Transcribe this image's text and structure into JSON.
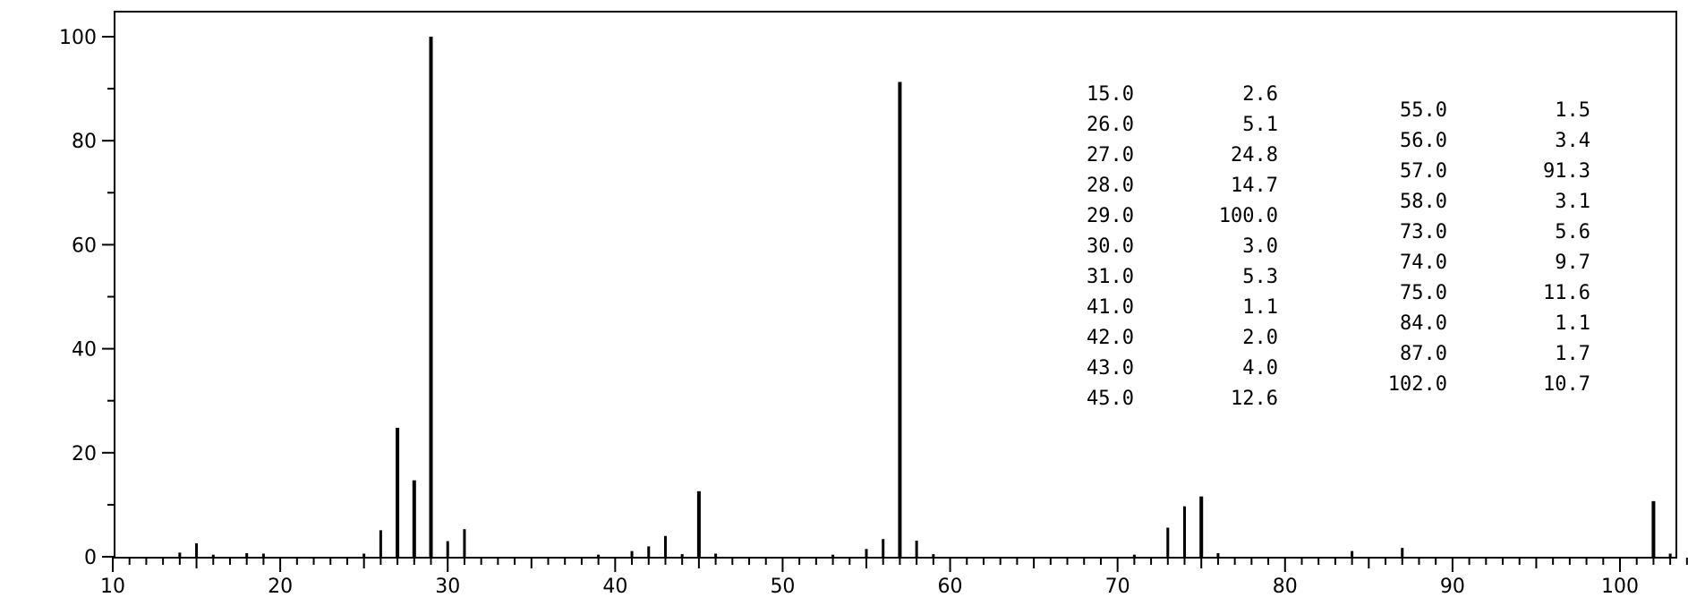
{
  "chart_data": {
    "type": "bar",
    "title": "",
    "xlabel": "",
    "ylabel": "",
    "xlim": [
      10,
      105
    ],
    "ylim": [
      0,
      100
    ],
    "grid": false,
    "xticks": [
      10,
      20,
      30,
      40,
      50,
      60,
      70,
      80,
      90,
      100
    ],
    "yticks": [
      0,
      20,
      40,
      60,
      80,
      100
    ],
    "series": [
      {
        "values": [
          {
            "x": 14,
            "y": 0.8
          },
          {
            "x": 15,
            "y": 2.6
          },
          {
            "x": 16,
            "y": 0.4
          },
          {
            "x": 18,
            "y": 0.7
          },
          {
            "x": 19,
            "y": 0.6
          },
          {
            "x": 25,
            "y": 0.6
          },
          {
            "x": 26,
            "y": 5.1
          },
          {
            "x": 27,
            "y": 24.8
          },
          {
            "x": 28,
            "y": 14.7
          },
          {
            "x": 29,
            "y": 100.0
          },
          {
            "x": 30,
            "y": 3.0
          },
          {
            "x": 31,
            "y": 5.3
          },
          {
            "x": 39,
            "y": 0.4
          },
          {
            "x": 41,
            "y": 1.1
          },
          {
            "x": 42,
            "y": 2.0
          },
          {
            "x": 43,
            "y": 4.0
          },
          {
            "x": 44,
            "y": 0.5
          },
          {
            "x": 45,
            "y": 12.6
          },
          {
            "x": 46,
            "y": 0.6
          },
          {
            "x": 53,
            "y": 0.4
          },
          {
            "x": 55,
            "y": 1.5
          },
          {
            "x": 56,
            "y": 3.4
          },
          {
            "x": 57,
            "y": 91.3
          },
          {
            "x": 58,
            "y": 3.1
          },
          {
            "x": 59,
            "y": 0.5
          },
          {
            "x": 71,
            "y": 0.4
          },
          {
            "x": 73,
            "y": 5.6
          },
          {
            "x": 74,
            "y": 9.7
          },
          {
            "x": 75,
            "y": 11.6
          },
          {
            "x": 76,
            "y": 0.7
          },
          {
            "x": 84,
            "y": 1.1
          },
          {
            "x": 87,
            "y": 1.7
          },
          {
            "x": 102,
            "y": 10.7
          },
          {
            "x": 103,
            "y": 0.6
          }
        ]
      }
    ],
    "peak_table": {
      "columns": [
        [
          [
            "15.0",
            "2.6"
          ],
          [
            "26.0",
            "5.1"
          ],
          [
            "27.0",
            "24.8"
          ],
          [
            "28.0",
            "14.7"
          ],
          [
            "29.0",
            "100.0"
          ],
          [
            "30.0",
            "3.0"
          ],
          [
            "31.0",
            "5.3"
          ],
          [
            "41.0",
            "1.1"
          ],
          [
            "42.0",
            "2.0"
          ],
          [
            "43.0",
            "4.0"
          ],
          [
            "45.0",
            "12.6"
          ]
        ],
        [
          [
            "55.0",
            "1.5"
          ],
          [
            "56.0",
            "3.4"
          ],
          [
            "57.0",
            "91.3"
          ],
          [
            "58.0",
            "3.1"
          ],
          [
            "73.0",
            "5.6"
          ],
          [
            "74.0",
            "9.7"
          ],
          [
            "75.0",
            "11.6"
          ],
          [
            "84.0",
            "1.1"
          ],
          [
            "87.0",
            "1.7"
          ],
          [
            "102.0",
            "10.7"
          ]
        ]
      ]
    }
  }
}
